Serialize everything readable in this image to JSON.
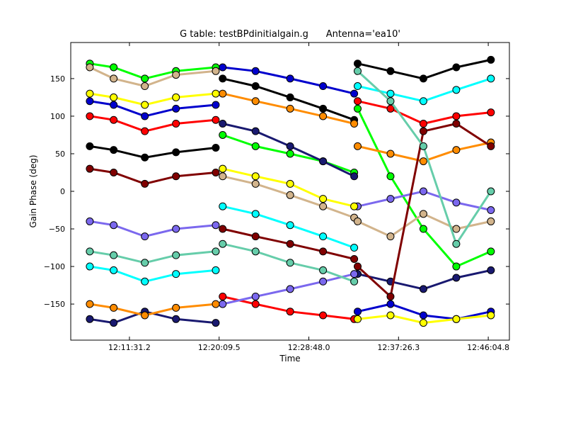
{
  "chart_data": {
    "type": "line",
    "title": "G table: testBPdinitialgain.g      Antenna='ea10'",
    "xlabel": "Time",
    "ylabel": "Gain Phase (deg)",
    "xlim": [
      "12:05:52",
      "12:48:07"
    ],
    "ylim": [
      -198,
      198
    ],
    "xticks": [
      "12:11:31.2",
      "12:20:09.5",
      "12:28:48.0",
      "12:37:26.3",
      "12:46:04.8"
    ],
    "yticks": [
      {
        "value": -150,
        "label": "−150"
      },
      {
        "value": -100,
        "label": "−100"
      },
      {
        "value": -50,
        "label": "−50"
      },
      0,
      50,
      100,
      150
    ],
    "x": [
      "12:07:42",
      "12:10:00",
      "12:13:00",
      "12:16:00",
      "12:19:50",
      "12:20:15",
      "12:20:30",
      "12:23:40",
      "12:27:00",
      "12:30:10",
      "12:33:10",
      "12:33:20",
      "12:33:30",
      "12:36:40",
      "12:39:50",
      "12:43:00",
      "12:46:20"
    ],
    "series": [
      {
        "color": "#000000",
        "values": [
          60,
          55,
          45,
          52,
          58,
          null,
          150,
          140,
          125,
          110,
          95,
          null,
          170,
          160,
          150,
          165,
          175
        ]
      },
      {
        "color": "#ff0000",
        "values": [
          100,
          95,
          80,
          90,
          95,
          null,
          -140,
          -150,
          -160,
          -165,
          -170,
          null,
          120,
          110,
          90,
          100,
          105
        ]
      },
      {
        "color": "#0000cd",
        "values": [
          120,
          115,
          100,
          110,
          115,
          null,
          165,
          160,
          150,
          140,
          130,
          null,
          -160,
          -150,
          -165,
          -170,
          -160
        ]
      },
      {
        "color": "#00ff00",
        "values": [
          170,
          165,
          150,
          160,
          165,
          null,
          75,
          60,
          50,
          40,
          25,
          null,
          110,
          20,
          -50,
          -100,
          -80
        ]
      },
      {
        "color": "#00ffff",
        "values": [
          -100,
          -105,
          -120,
          -110,
          -105,
          null,
          -20,
          -30,
          -45,
          -60,
          -75,
          null,
          140,
          130,
          120,
          135,
          150
        ]
      },
      {
        "color": "#d2b48c",
        "values": [
          165,
          150,
          140,
          155,
          160,
          null,
          20,
          10,
          -5,
          -20,
          -35,
          null,
          -40,
          -60,
          -30,
          -50,
          -40
        ]
      },
      {
        "color": "#191970",
        "values": [
          -170,
          -175,
          -160,
          -170,
          -175,
          null,
          90,
          80,
          60,
          40,
          20,
          null,
          -110,
          -120,
          -130,
          -115,
          -105
        ]
      },
      {
        "color": "#7b68ee",
        "values": [
          -40,
          -45,
          -60,
          -50,
          -45,
          null,
          -150,
          -140,
          -130,
          -120,
          -110,
          null,
          -20,
          -10,
          0,
          -15,
          -25
        ]
      },
      {
        "color": "#ff8c00",
        "values": [
          -150,
          -155,
          -165,
          -155,
          -150,
          null,
          130,
          120,
          110,
          100,
          90,
          null,
          60,
          50,
          40,
          55,
          65
        ]
      },
      {
        "color": "#800000",
        "values": [
          30,
          25,
          10,
          20,
          25,
          null,
          -50,
          -60,
          -70,
          -80,
          -90,
          null,
          -100,
          -140,
          80,
          90,
          60
        ]
      },
      {
        "color": "#ffff00",
        "values": [
          130,
          125,
          115,
          125,
          130,
          null,
          30,
          20,
          10,
          -10,
          -20,
          null,
          -170,
          -165,
          -175,
          -170,
          -165
        ]
      },
      {
        "color": "#66cdaa",
        "values": [
          -80,
          -85,
          -95,
          -85,
          -80,
          null,
          -70,
          -80,
          -95,
          -105,
          -120,
          null,
          160,
          120,
          60,
          -70,
          0
        ]
      }
    ]
  }
}
